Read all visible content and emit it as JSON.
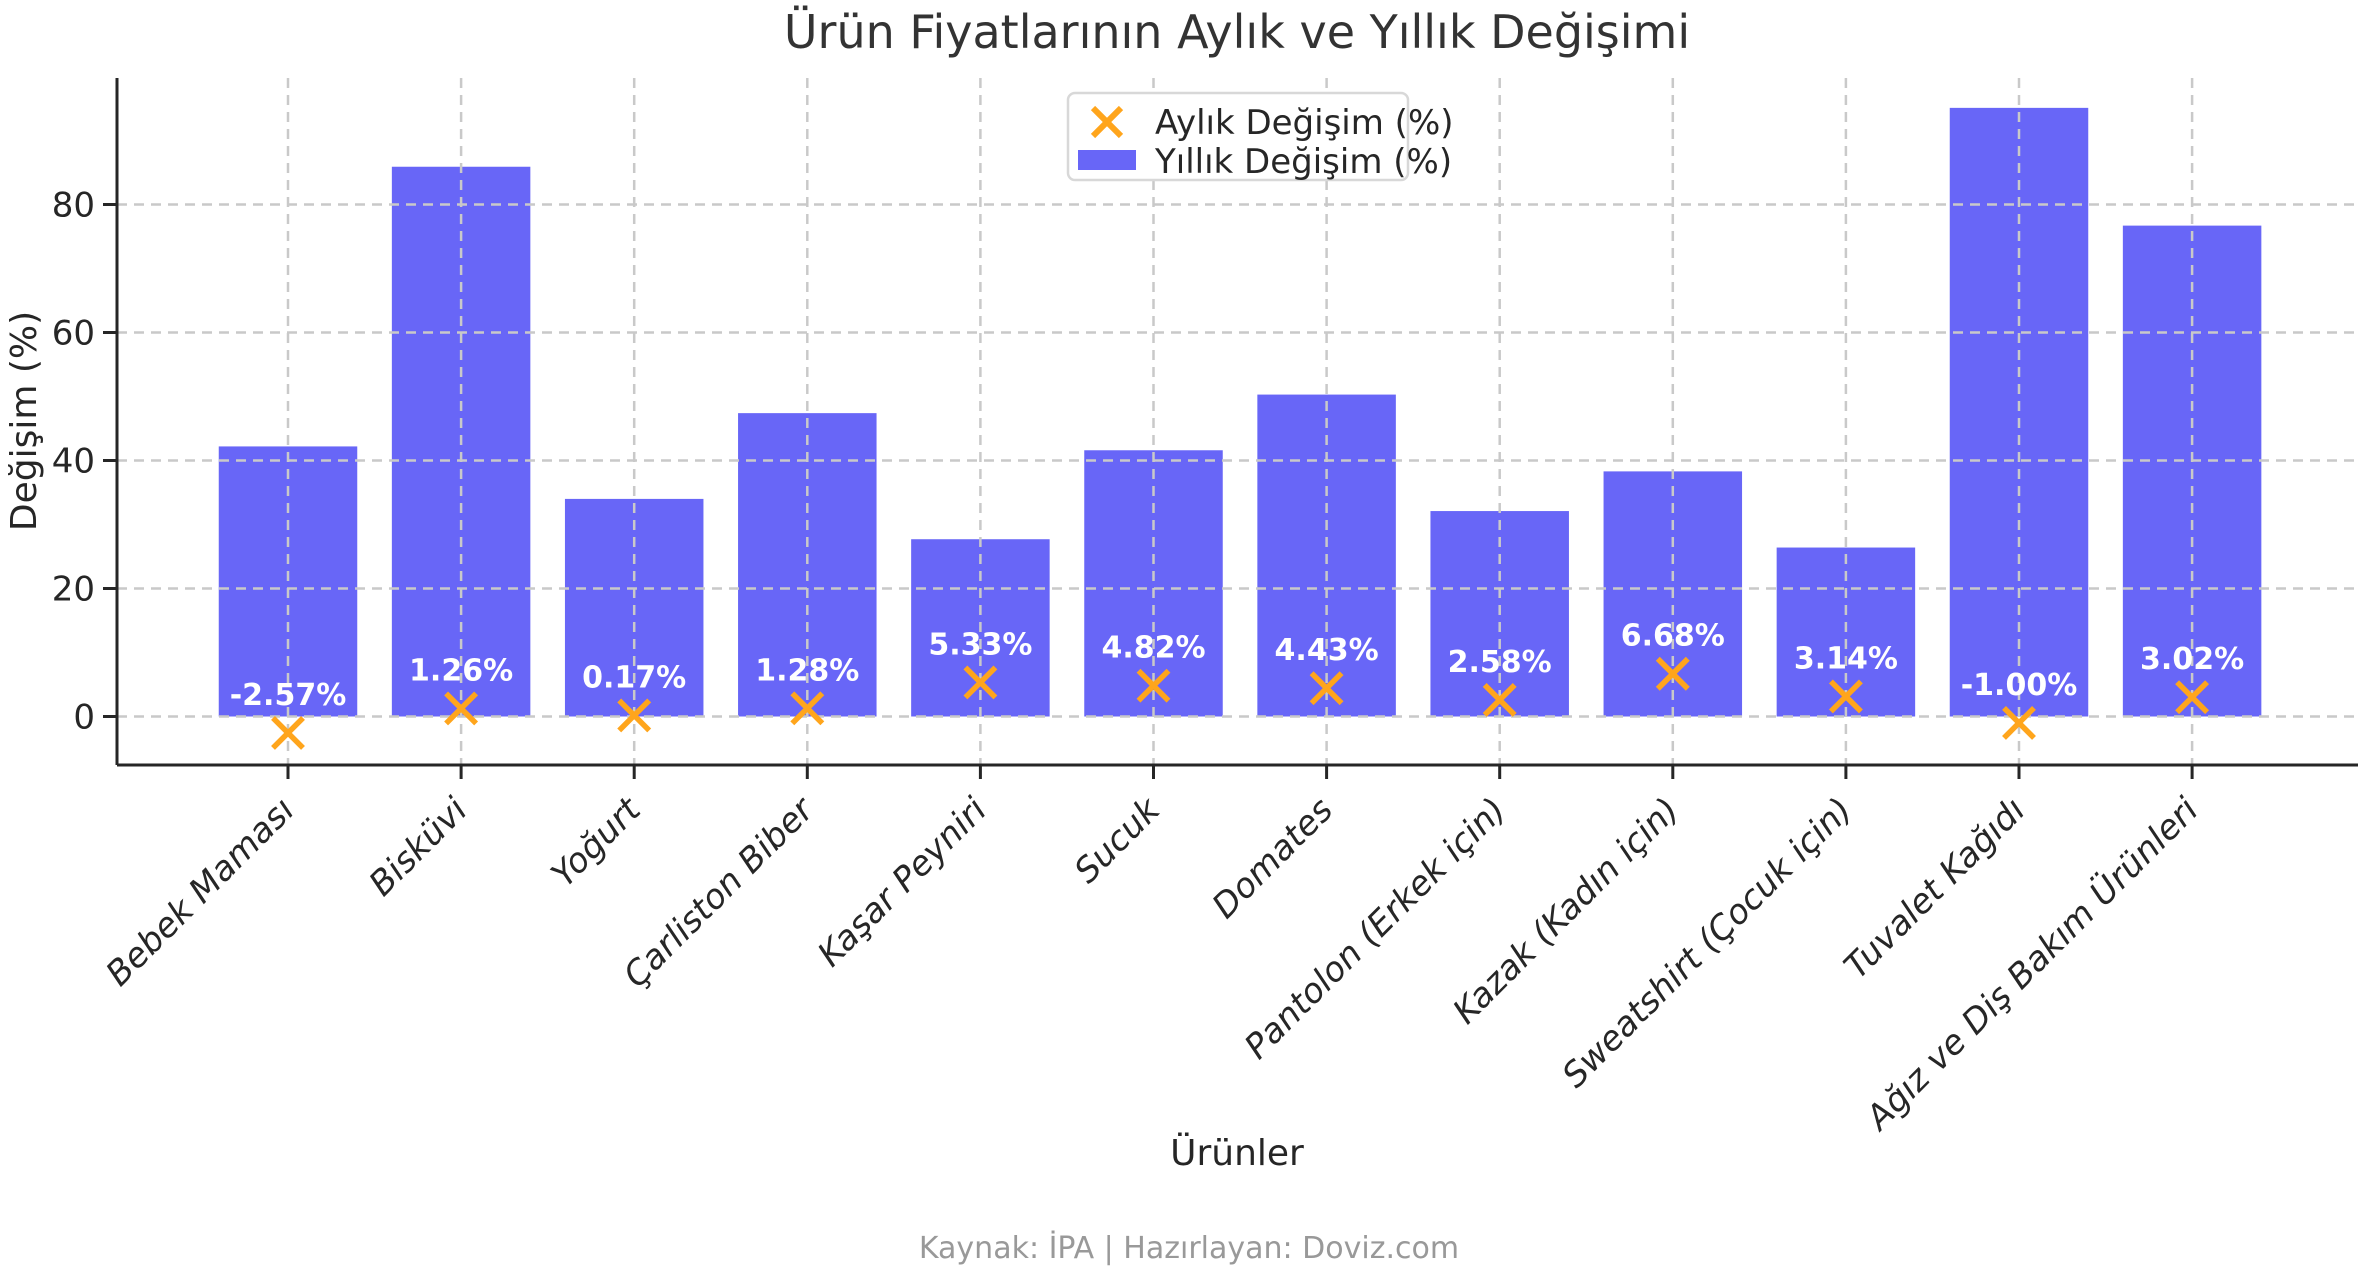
{
  "title": "Ürün Fiyatlarının Aylık ve Yıllık Değişimi",
  "footer": "Kaynak: İPA | Hazırlayan: Doviz.com",
  "chart_data": {
    "type": "bar",
    "title": "Ürün Fiyatlarının Aylık ve Yıllık Değişimi",
    "xlabel": "Ürünler",
    "ylabel": "Değişim (%)",
    "categories": [
      "Bebek Maması",
      "Bisküvi",
      "Yoğurt",
      "Çarliston Biber",
      "Kaşar Peyniri",
      "Sucuk",
      "Domates",
      "Pantolon (Erkek için)",
      "Kazak (Kadın için)",
      "Sweatshirt (Çocuk için)",
      "Tuvalet Kağıdı",
      "Ağız ve Diş Bakım Ürünleri"
    ],
    "series": [
      {
        "name": "Aylık Değişim (%)",
        "type": "scatter",
        "marker": "x",
        "color": "#FFA51C",
        "values": [
          -2.57,
          1.26,
          0.17,
          1.28,
          5.33,
          4.82,
          4.43,
          2.58,
          6.68,
          3.14,
          -1.0,
          3.02
        ],
        "labels": [
          "-2.57%",
          "1.26%",
          "0.17%",
          "1.28%",
          "5.33%",
          "4.82%",
          "4.43%",
          "2.58%",
          "6.68%",
          "3.14%",
          "-1.00%",
          "3.02%"
        ]
      },
      {
        "name": "Yıllık Değişim (%)",
        "type": "bar",
        "color": "#6866F7",
        "values": [
          42.2,
          85.9,
          34.0,
          47.4,
          27.7,
          41.6,
          50.3,
          32.1,
          38.3,
          26.4,
          95.1,
          76.7
        ]
      }
    ],
    "yticks": [
      0,
      20,
      40,
      60,
      80
    ],
    "ylim": [
      -7.6,
      100.4
    ],
    "grid": true,
    "grid_style": "dashed",
    "legend_position": "upper-center",
    "source_note": "Kaynak: İPA | Hazırlayan: Doviz.com",
    "colors": {
      "bar": "#6866F7",
      "marker": "#FFA51C",
      "grid": "#c9c9c9",
      "spine": "#262626",
      "annotation_text": "#ffffff",
      "footer_text": "#999999"
    }
  }
}
